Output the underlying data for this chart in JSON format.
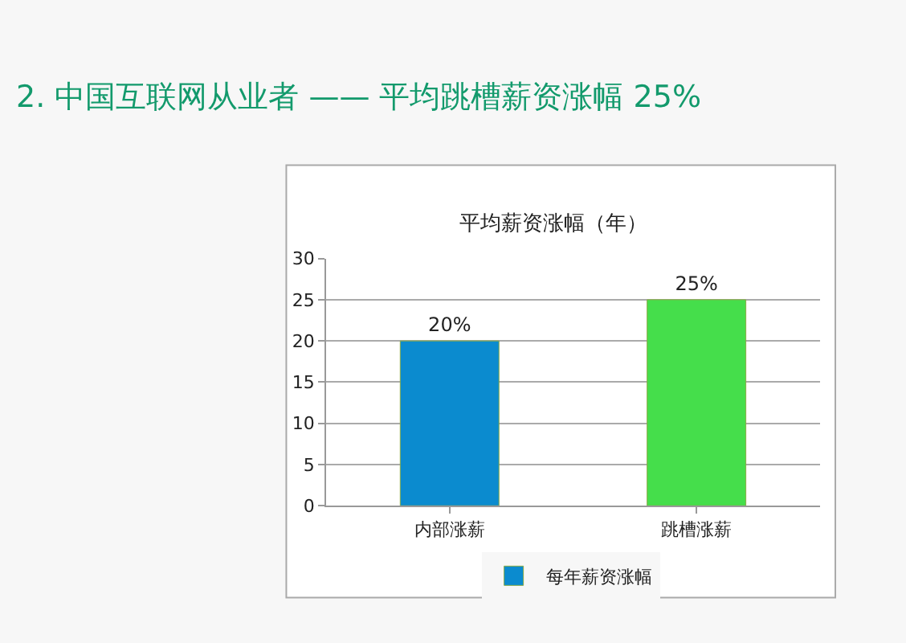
{
  "chart_data": {
    "type": "bar",
    "title": "2. 中国互联网从业者 —— 平均跳槽薪资涨幅 25%",
    "subtitle": "平均薪资涨幅（年）",
    "categories": [
      "内部涨薪",
      "跳槽涨薪"
    ],
    "series": [
      {
        "name": "每年薪资涨幅",
        "colors": [
          "#0b8bcf",
          "#45de4b"
        ],
        "values": [
          20,
          25
        ],
        "value_labels": [
          "20%",
          "25%"
        ]
      }
    ],
    "ylim": [
      0,
      30
    ],
    "yticks": [
      0,
      5,
      10,
      15,
      20,
      25,
      30
    ],
    "grid": "y",
    "legend": "bottom"
  }
}
